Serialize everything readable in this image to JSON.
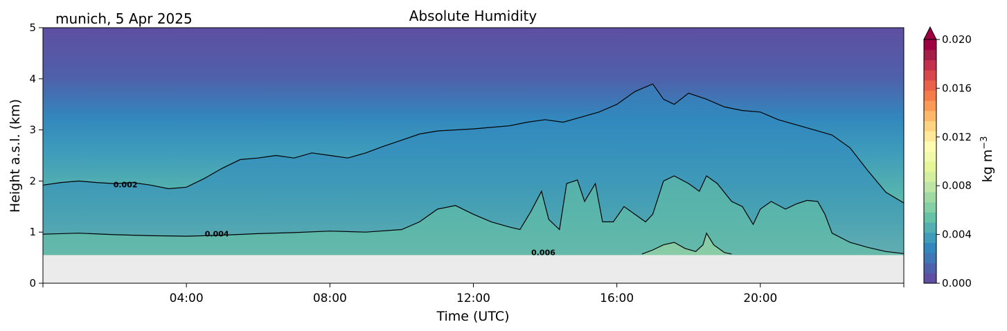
{
  "chart_data": {
    "type": "heatmap",
    "title": "Absolute Humidity",
    "location_date": "munich, 5 Apr 2025",
    "xlabel": "Time (UTC)",
    "ylabel": "Height a.s.l. (km)",
    "xlim_hours": [
      0,
      24
    ],
    "ylim": [
      0,
      5
    ],
    "x_ticks": [
      {
        "hour": 4,
        "label": "04:00"
      },
      {
        "hour": 8,
        "label": "08:00"
      },
      {
        "hour": 12,
        "label": "12:00"
      },
      {
        "hour": 16,
        "label": "16:00"
      },
      {
        "hour": 20,
        "label": "20:00"
      }
    ],
    "y_ticks": [
      {
        "value": 0,
        "label": "0"
      },
      {
        "value": 1,
        "label": "1"
      },
      {
        "value": 2,
        "label": "2"
      },
      {
        "value": 3,
        "label": "3"
      },
      {
        "value": 4,
        "label": "4"
      },
      {
        "value": 5,
        "label": "5"
      }
    ],
    "no_data_below_km": 0.55,
    "colorbar": {
      "label": "kg m",
      "label_exponent": "−3",
      "range": [
        0.0,
        0.02
      ],
      "extend": "max",
      "ticks": [
        {
          "value": 0.0,
          "label": "0.000"
        },
        {
          "value": 0.004,
          "label": "0.004"
        },
        {
          "value": 0.008,
          "label": "0.008"
        },
        {
          "value": 0.012,
          "label": "0.012"
        },
        {
          "value": 0.016,
          "label": "0.016"
        },
        {
          "value": 0.02,
          "label": "0.020"
        }
      ],
      "colors": [
        "#5e4fa2",
        "#4f60aa",
        "#3f77b6",
        "#3288bd",
        "#3f9cbb",
        "#52b0b0",
        "#66c2a5",
        "#85cfa5",
        "#a1d9a4",
        "#bde6a6",
        "#d3ee9e",
        "#e6f598",
        "#f2f9a8",
        "#fefbb3",
        "#fee99a",
        "#fed480",
        "#fdb869",
        "#fa9a59",
        "#f47c4b",
        "#e86148",
        "#d8474b",
        "#c2304c",
        "#a51e47",
        "#9e0142"
      ],
      "extend_color": "#9e0142"
    },
    "contours": [
      {
        "level": 0.002,
        "label": "0.002",
        "label_at": [
          2.3,
          1.93
        ],
        "points": [
          [
            0,
            1.92
          ],
          [
            0.5,
            1.97
          ],
          [
            1.0,
            2.0
          ],
          [
            1.5,
            1.97
          ],
          [
            2.0,
            1.95
          ],
          [
            2.5,
            1.97
          ],
          [
            3.0,
            1.92
          ],
          [
            3.5,
            1.85
          ],
          [
            4.0,
            1.88
          ],
          [
            4.5,
            2.05
          ],
          [
            5.0,
            2.25
          ],
          [
            5.5,
            2.42
          ],
          [
            6.0,
            2.45
          ],
          [
            6.5,
            2.5
          ],
          [
            7.0,
            2.45
          ],
          [
            7.5,
            2.55
          ],
          [
            8.0,
            2.5
          ],
          [
            8.5,
            2.45
          ],
          [
            9.0,
            2.55
          ],
          [
            9.5,
            2.68
          ],
          [
            10.0,
            2.8
          ],
          [
            10.5,
            2.92
          ],
          [
            11.0,
            2.98
          ],
          [
            11.5,
            3.0
          ],
          [
            12.0,
            3.02
          ],
          [
            12.5,
            3.05
          ],
          [
            13.0,
            3.08
          ],
          [
            13.5,
            3.15
          ],
          [
            14.0,
            3.2
          ],
          [
            14.5,
            3.15
          ],
          [
            15.0,
            3.25
          ],
          [
            15.5,
            3.35
          ],
          [
            16.0,
            3.5
          ],
          [
            16.5,
            3.75
          ],
          [
            17.0,
            3.9
          ],
          [
            17.3,
            3.6
          ],
          [
            17.6,
            3.5
          ],
          [
            18.0,
            3.72
          ],
          [
            18.5,
            3.6
          ],
          [
            19.0,
            3.45
          ],
          [
            19.5,
            3.38
          ],
          [
            20.0,
            3.35
          ],
          [
            20.5,
            3.2
          ],
          [
            21.0,
            3.1
          ],
          [
            21.5,
            3.0
          ],
          [
            22.0,
            2.9
          ],
          [
            22.5,
            2.65
          ],
          [
            23.0,
            2.2
          ],
          [
            23.5,
            1.78
          ],
          [
            24.0,
            1.57
          ]
        ]
      },
      {
        "level": 0.004,
        "label": "0.004",
        "label_at": [
          4.85,
          0.97
        ],
        "points": [
          [
            0,
            0.96
          ],
          [
            1,
            0.98
          ],
          [
            2,
            0.95
          ],
          [
            3,
            0.93
          ],
          [
            4,
            0.92
          ],
          [
            5,
            0.94
          ],
          [
            6,
            0.97
          ],
          [
            7,
            0.99
          ],
          [
            8,
            1.02
          ],
          [
            9,
            1.0
          ],
          [
            10,
            1.05
          ],
          [
            10.5,
            1.2
          ],
          [
            11,
            1.45
          ],
          [
            11.5,
            1.52
          ],
          [
            12,
            1.35
          ],
          [
            12.5,
            1.2
          ],
          [
            13,
            1.1
          ],
          [
            13.3,
            1.05
          ],
          [
            13.6,
            1.4
          ],
          [
            13.9,
            1.8
          ],
          [
            14.1,
            1.25
          ],
          [
            14.4,
            1.05
          ],
          [
            14.6,
            1.95
          ],
          [
            14.9,
            2.02
          ],
          [
            15.1,
            1.6
          ],
          [
            15.4,
            1.95
          ],
          [
            15.6,
            1.2
          ],
          [
            15.9,
            1.2
          ],
          [
            16.2,
            1.5
          ],
          [
            16.5,
            1.35
          ],
          [
            16.8,
            1.2
          ],
          [
            17.0,
            1.35
          ],
          [
            17.3,
            2.0
          ],
          [
            17.6,
            2.1
          ],
          [
            18.0,
            1.95
          ],
          [
            18.3,
            1.8
          ],
          [
            18.5,
            2.1
          ],
          [
            18.8,
            1.95
          ],
          [
            19.2,
            1.6
          ],
          [
            19.5,
            1.5
          ],
          [
            19.8,
            1.15
          ],
          [
            20.0,
            1.45
          ],
          [
            20.3,
            1.6
          ],
          [
            20.7,
            1.45
          ],
          [
            21.0,
            1.55
          ],
          [
            21.3,
            1.62
          ],
          [
            21.6,
            1.6
          ],
          [
            21.8,
            1.35
          ],
          [
            22.0,
            0.98
          ],
          [
            22.5,
            0.8
          ],
          [
            23.0,
            0.7
          ],
          [
            23.5,
            0.62
          ],
          [
            24.0,
            0.58
          ]
        ]
      },
      {
        "level": 0.006,
        "label": "0.006",
        "label_at": [
          13.95,
          0.6
        ],
        "points": [
          [
            16.7,
            0.57
          ],
          [
            17.0,
            0.65
          ],
          [
            17.3,
            0.75
          ],
          [
            17.6,
            0.8
          ],
          [
            17.9,
            0.68
          ],
          [
            18.2,
            0.62
          ],
          [
            18.4,
            0.75
          ],
          [
            18.5,
            0.98
          ],
          [
            18.7,
            0.75
          ],
          [
            19.0,
            0.6
          ],
          [
            19.2,
            0.57
          ]
        ]
      }
    ],
    "no_data_color": "#ebebeb"
  }
}
